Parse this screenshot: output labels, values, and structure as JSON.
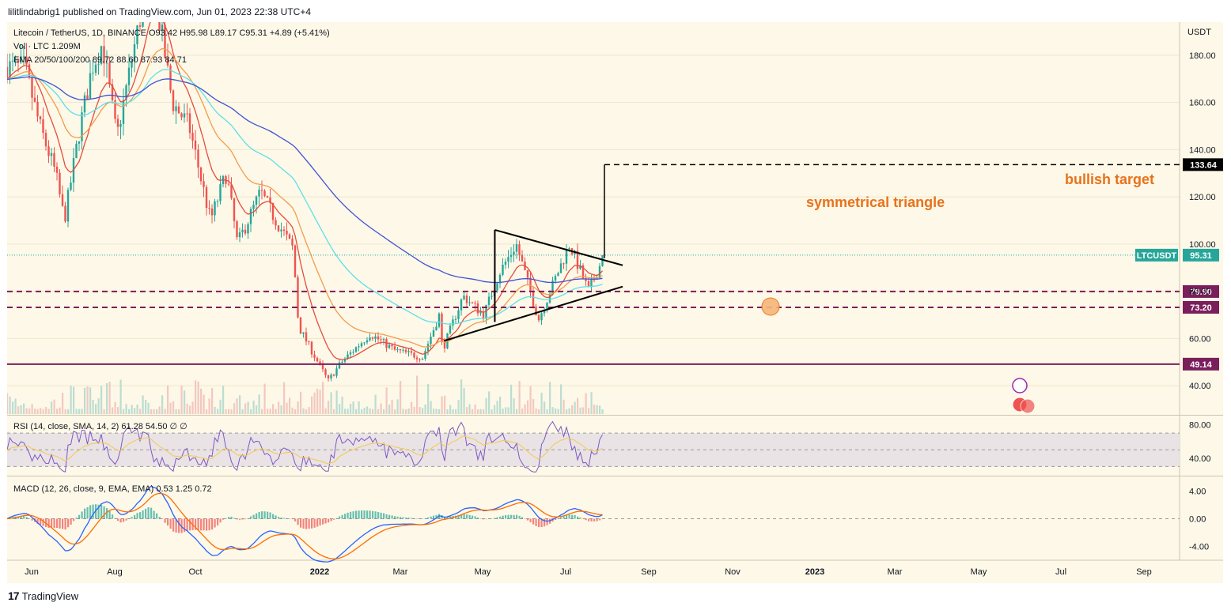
{
  "header": {
    "published_text": "lilitlindabrig1 published on TradingView.com, Jun 01, 2023 22:38 UTC+4"
  },
  "legend": {
    "symbol_line": "Litecoin / TetherUS, 1D, BINANCE  O93.42  H95.98  L89.17  C95.31  +4.89 (+5.41%)",
    "volume_line": "Vol · LTC  1.209M",
    "ema_line": "EMA 20/50/100/200  89.72  88.60  87.93  84.71"
  },
  "colors": {
    "background": "#fdf8e7",
    "up_candle": "#26a69a",
    "down_candle": "#ef5350",
    "ema20": "#e74c3c",
    "ema50": "#f39c4d",
    "ema100": "#5ee0e8",
    "ema200": "#3f51d6",
    "support_line": "#7b1e5c",
    "annotation": "#e8721c",
    "rsi_line": "#7e57c2",
    "rsi_signal": "#f2c94c",
    "macd_line": "#2962ff",
    "macd_signal": "#ff6d00"
  },
  "chart_data": {
    "type": "candlestick",
    "symbol": "LTCUSDT",
    "exchange": "BINANCE",
    "interval": "1D",
    "currency_label": "USDT",
    "x_ticks": [
      "Jun",
      "Aug",
      "Oct",
      "2022",
      "Mar",
      "May",
      "Jul",
      "Sep",
      "Nov",
      "2023",
      "Mar",
      "May",
      "Jul",
      "Sep"
    ],
    "y_ticks": [
      40.0,
      60.0,
      80.0,
      100.0,
      120.0,
      140.0,
      160.0,
      180.0
    ],
    "ylim": [
      28,
      194
    ],
    "close_path": [
      {
        "t": "2021-06-01",
        "v": 175
      },
      {
        "t": "2021-06-20",
        "v": 150
      },
      {
        "t": "2021-07-10",
        "v": 130
      },
      {
        "t": "2021-07-21",
        "v": 110
      },
      {
        "t": "2021-08-10",
        "v": 150
      },
      {
        "t": "2021-08-25",
        "v": 175
      },
      {
        "t": "2021-09-07",
        "v": 185
      },
      {
        "t": "2021-09-25",
        "v": 145
      },
      {
        "t": "2021-10-15",
        "v": 180
      },
      {
        "t": "2021-11-05",
        "v": 215
      },
      {
        "t": "2021-11-20",
        "v": 190
      },
      {
        "t": "2021-12-04",
        "v": 160
      },
      {
        "t": "2021-12-25",
        "v": 150
      },
      {
        "t": "2022-01-21",
        "v": 110
      },
      {
        "t": "2022-02-10",
        "v": 130
      },
      {
        "t": "2022-02-24",
        "v": 100
      },
      {
        "t": "2022-03-25",
        "v": 122
      },
      {
        "t": "2022-04-10",
        "v": 112
      },
      {
        "t": "2022-05-05",
        "v": 98
      },
      {
        "t": "2022-05-12",
        "v": 65
      },
      {
        "t": "2022-06-18",
        "v": 42
      },
      {
        "t": "2022-07-05",
        "v": 50
      },
      {
        "t": "2022-08-10",
        "v": 62
      },
      {
        "t": "2022-09-10",
        "v": 55
      },
      {
        "t": "2022-10-15",
        "v": 52
      },
      {
        "t": "2022-11-05",
        "v": 70
      },
      {
        "t": "2022-11-09",
        "v": 55
      },
      {
        "t": "2022-12-05",
        "v": 78
      },
      {
        "t": "2022-12-31",
        "v": 70
      },
      {
        "t": "2023-01-20",
        "v": 88
      },
      {
        "t": "2023-02-10",
        "v": 100
      },
      {
        "t": "2023-03-10",
        "v": 68
      },
      {
        "t": "2023-04-18",
        "v": 100
      },
      {
        "t": "2023-05-12",
        "v": 80
      },
      {
        "t": "2023-06-01",
        "v": 95.31
      }
    ],
    "indicators": {
      "ema20": {
        "last": 89.72
      },
      "ema50": {
        "last": 88.6
      },
      "ema100": {
        "last": 87.93
      },
      "ema200": {
        "last": 84.71
      }
    },
    "volume": {
      "label": "Vol · LTC",
      "last": "1.209M"
    },
    "horizontal_levels": [
      {
        "value": 79.9,
        "label": "79.90",
        "style": "dashed"
      },
      {
        "value": 73.2,
        "label": "73.20",
        "style": "dashed"
      },
      {
        "value": 49.14,
        "label": "49.14",
        "style": "solid"
      }
    ],
    "current_price": {
      "value": 95.31,
      "label": "95.31",
      "ticker": "LTCUSDT"
    },
    "target": {
      "value": 133.64,
      "label": "133.64"
    },
    "triangle": {
      "upper": [
        {
          "t": "2023-01-14",
          "v": 106
        },
        {
          "t": "2023-06-24",
          "v": 91
        }
      ],
      "lower": [
        {
          "t": "2022-11-11",
          "v": 59
        },
        {
          "t": "2023-06-24",
          "v": 82
        }
      ],
      "height_line": {
        "t": "2023-01-14",
        "v1": 106,
        "v2": 67
      },
      "breakout_line": {
        "t": "2023-06-01",
        "v1": 94,
        "v2": 133.64
      }
    },
    "annotations": {
      "triangle_label": "symmetrical triangle",
      "target_label": "bullish target"
    },
    "rsi": {
      "label": "RSI (14, close, SMA, 14, 2)",
      "values_text": "61.28  54.50  ∅  ∅",
      "last": 61.28,
      "signal": 54.5,
      "y_ticks": [
        80.0,
        40.0
      ],
      "band": [
        30,
        70
      ]
    },
    "macd": {
      "label": "MACD (12, 26, close, 9, EMA, EMA)",
      "values_text": "0.53  1.25  0.72",
      "histogram_last": 0.53,
      "macd_last": 1.25,
      "signal_last": 0.72,
      "y_ticks": [
        4.0,
        0.0,
        -4.0
      ]
    }
  },
  "footer": {
    "logo_text": "TradingView"
  }
}
